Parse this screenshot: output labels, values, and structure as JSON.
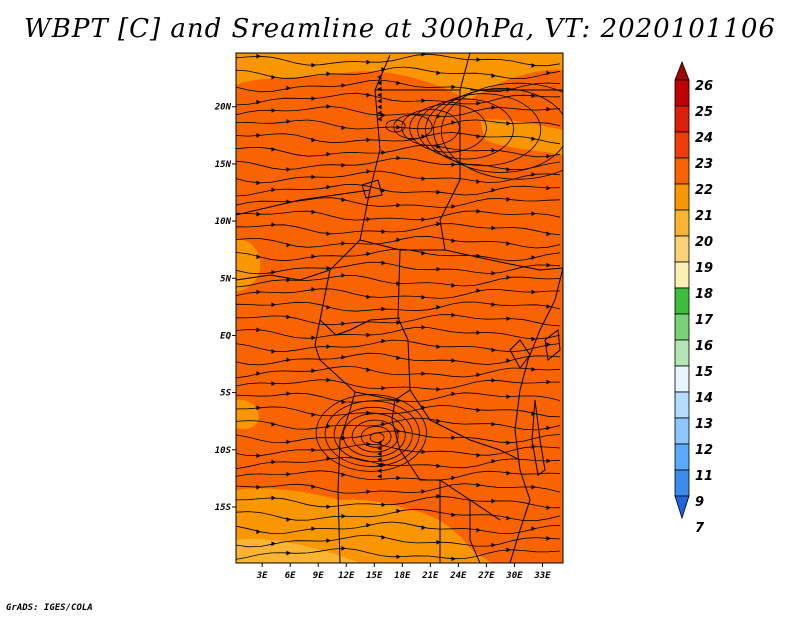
{
  "chart_data": {
    "type": "heatmap",
    "title": "WBPT [C] and Sreamline at 300hPa, VT: 2020101106",
    "variable": "WBPT [C]",
    "overlay": "streamlines",
    "level": "300hPa",
    "valid_time": "2020101106",
    "x_ticks": [
      "3E",
      "6E",
      "9E",
      "12E",
      "15E",
      "18E",
      "21E",
      "24E",
      "27E",
      "30E",
      "33E"
    ],
    "x_values": [
      3,
      6,
      9,
      12,
      15,
      18,
      21,
      24,
      27,
      30,
      33
    ],
    "y_ticks": [
      "20N",
      "15N",
      "10N",
      "5N",
      "EQ",
      "5S",
      "10S",
      "15S"
    ],
    "y_values": [
      20,
      15,
      10,
      5,
      0,
      -5,
      -10,
      -15
    ],
    "xlim": [
      0.2,
      35.2
    ],
    "ylim": [
      -19.9,
      24.7
    ],
    "colorbar": {
      "levels": [
        "26",
        "25",
        "24",
        "23",
        "22",
        "21",
        "20",
        "19",
        "18",
        "17",
        "16",
        "15",
        "14",
        "13",
        "12",
        "11",
        "9",
        "7"
      ],
      "colors": [
        "#a00000",
        "#c00000",
        "#dc1e0a",
        "#f03c0a",
        "#fa6400",
        "#fa9600",
        "#fab432",
        "#fad278",
        "#faf0b4",
        "#3cbe3c",
        "#78d278",
        "#b4e6b4",
        "#e6f5ff",
        "#b4dcff",
        "#8cc8ff",
        "#5aaaff",
        "#3c8cf0",
        "#1e64dc"
      ],
      "top_arrow_color": "#a00000",
      "bottom_arrow_color": "#1e64dc"
    },
    "field_colors": {
      "dominant": "#fa6400",
      "secondary": "#fa9600",
      "minor": "#fab432"
    }
  },
  "credit": "GrADS: IGES/COLA"
}
